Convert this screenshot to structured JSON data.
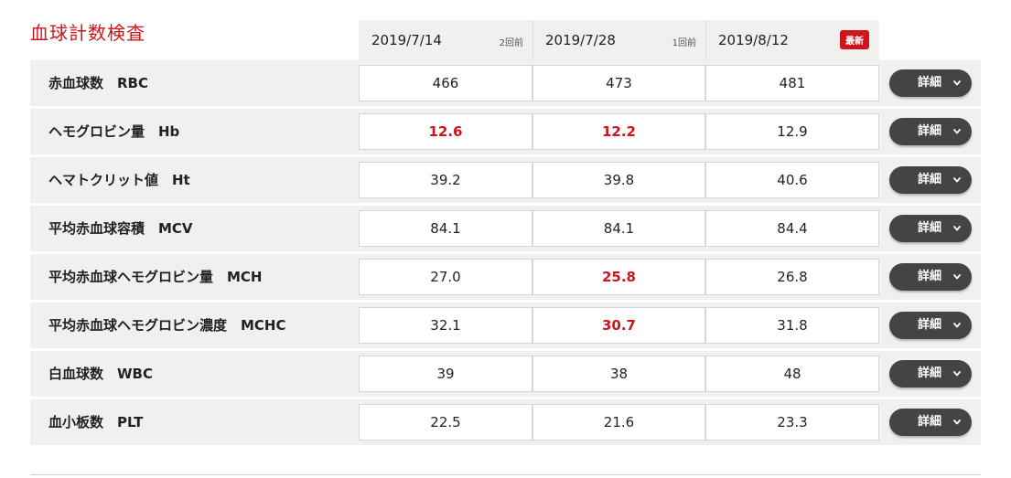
{
  "page": {
    "title": "血球計数検査"
  },
  "columns": [
    {
      "date": "2019/7/14",
      "tag": "2回前",
      "type": "ago"
    },
    {
      "date": "2019/7/28",
      "tag": "1回前",
      "type": "ago"
    },
    {
      "date": "2019/8/12",
      "tag": "最新",
      "type": "new"
    }
  ],
  "rows": [
    {
      "label": "赤血球数　RBC",
      "values": [
        "466",
        "473",
        "481"
      ],
      "alerts": [
        false,
        false,
        false
      ],
      "detail_label": "詳細"
    },
    {
      "label": "ヘモグロビン量　Hb",
      "values": [
        "12.6",
        "12.2",
        "12.9"
      ],
      "alerts": [
        true,
        true,
        false
      ],
      "detail_label": "詳細"
    },
    {
      "label": "ヘマトクリット値　Ht",
      "values": [
        "39.2",
        "39.8",
        "40.6"
      ],
      "alerts": [
        false,
        false,
        false
      ],
      "detail_label": "詳細"
    },
    {
      "label": "平均赤血球容積　MCV",
      "values": [
        "84.1",
        "84.1",
        "84.4"
      ],
      "alerts": [
        false,
        false,
        false
      ],
      "detail_label": "詳細"
    },
    {
      "label": "平均赤血球ヘモグロビン量　MCH",
      "values": [
        "27.0",
        "25.8",
        "26.8"
      ],
      "alerts": [
        false,
        true,
        false
      ],
      "detail_label": "詳細"
    },
    {
      "label": "平均赤血球ヘモグロビン濃度　MCHC",
      "values": [
        "32.1",
        "30.7",
        "31.8"
      ],
      "alerts": [
        false,
        true,
        false
      ],
      "detail_label": "詳細"
    },
    {
      "label": "白血球数　WBC",
      "values": [
        "39",
        "38",
        "48"
      ],
      "alerts": [
        false,
        false,
        false
      ],
      "detail_label": "詳細"
    },
    {
      "label": "血小板数　PLT",
      "values": [
        "22.5",
        "21.6",
        "23.3"
      ],
      "alerts": [
        false,
        false,
        false
      ],
      "detail_label": "詳細"
    }
  ],
  "colors": {
    "accent": "#d0141b",
    "row_bg": "#f1f0ee",
    "button_bg": "#444444"
  },
  "icons": {
    "detail_button_icon": "chevron-down-icon"
  }
}
